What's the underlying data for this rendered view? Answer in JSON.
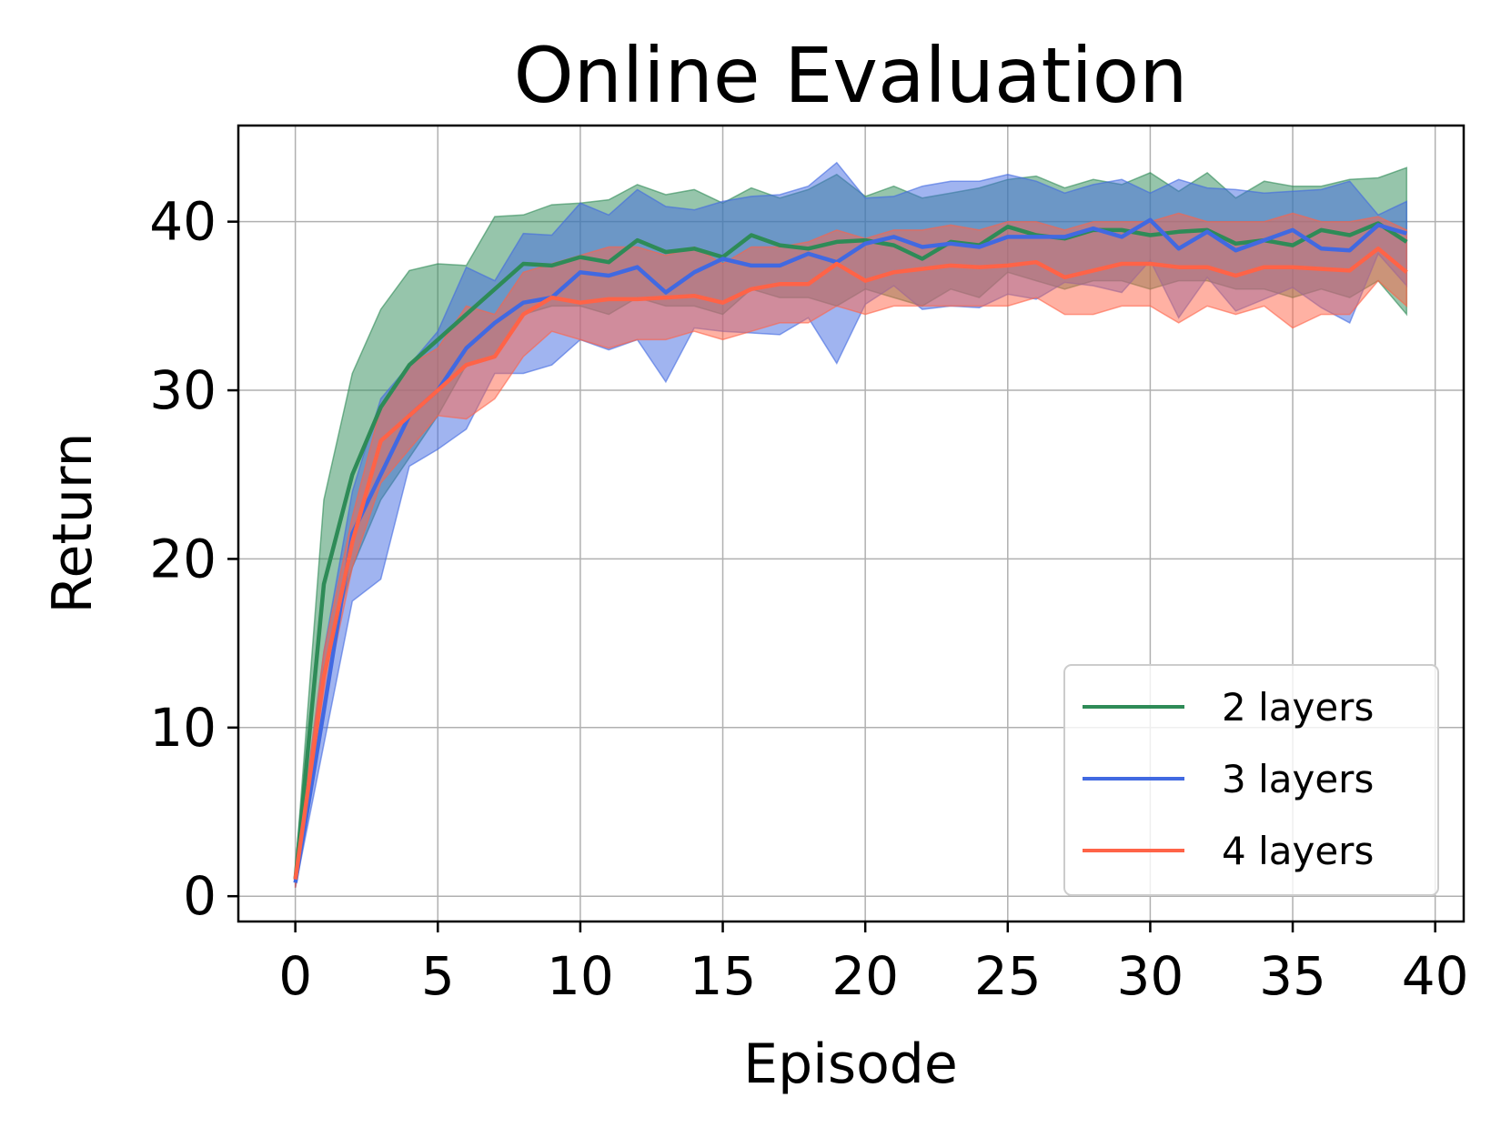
{
  "chart_data": {
    "type": "line",
    "title": "Online Evaluation",
    "xlabel": "Episode",
    "ylabel": "Return",
    "xlim": [
      -2,
      41
    ],
    "ylim": [
      -1.5,
      45.7
    ],
    "x_ticks": [
      0,
      5,
      10,
      15,
      20,
      25,
      30,
      35,
      40
    ],
    "y_ticks": [
      0,
      10,
      20,
      30,
      40
    ],
    "x_tick_labels": [
      "0",
      "5",
      "10",
      "15",
      "20",
      "25",
      "30",
      "35",
      "40"
    ],
    "y_tick_labels": [
      "0",
      "10",
      "20",
      "30",
      "40"
    ],
    "grid": true,
    "legend_position": "lower-right",
    "x": [
      0,
      1,
      2,
      3,
      4,
      5,
      6,
      7,
      8,
      9,
      10,
      11,
      12,
      13,
      14,
      15,
      16,
      17,
      18,
      19,
      20,
      21,
      22,
      23,
      24,
      25,
      26,
      27,
      28,
      29,
      30,
      31,
      32,
      33,
      34,
      35,
      36,
      37,
      38,
      39
    ],
    "series": [
      {
        "name": "2 layers",
        "color": "#2e8b57",
        "band_color": "#2e8b57",
        "values": [
          1.0,
          18.5,
          25.0,
          29.0,
          31.5,
          33.0,
          34.5,
          36.0,
          37.5,
          37.4,
          37.9,
          37.6,
          38.9,
          38.2,
          38.4,
          37.9,
          39.2,
          38.6,
          38.4,
          38.8,
          38.9,
          38.6,
          37.8,
          38.8,
          38.6,
          39.7,
          39.2,
          39.0,
          39.5,
          39.5,
          39.2,
          39.4,
          39.5,
          38.7,
          38.9,
          38.6,
          39.5,
          39.2,
          39.9,
          38.8
        ],
        "upper": [
          1.5,
          23.5,
          31.0,
          34.8,
          37.1,
          37.5,
          37.4,
          40.3,
          40.4,
          41.0,
          41.1,
          41.3,
          42.2,
          41.6,
          41.9,
          41.1,
          42.0,
          41.4,
          41.9,
          42.8,
          41.5,
          42.1,
          41.4,
          41.7,
          42.0,
          42.5,
          42.7,
          42.0,
          42.5,
          42.2,
          42.9,
          41.8,
          42.9,
          41.4,
          42.4,
          42.1,
          42.1,
          42.5,
          42.6,
          43.2
        ],
        "lower": [
          0.5,
          13.5,
          19.5,
          23.5,
          26.0,
          28.5,
          31.5,
          32.0,
          34.5,
          35.0,
          35.0,
          34.5,
          35.5,
          35.0,
          35.0,
          34.5,
          36.0,
          35.5,
          35.5,
          35.0,
          36.0,
          35.5,
          35.0,
          36.0,
          35.5,
          37.0,
          36.5,
          36.0,
          36.5,
          36.5,
          36.0,
          36.5,
          36.5,
          36.0,
          36.0,
          35.5,
          36.0,
          35.5,
          36.5,
          34.5
        ]
      },
      {
        "name": "3 layers",
        "color": "#4169e1",
        "band_color": "#4169e1",
        "values": [
          0.8,
          11.0,
          21.5,
          25.0,
          28.5,
          30.0,
          32.5,
          34.0,
          35.2,
          35.5,
          37.0,
          36.8,
          37.3,
          35.8,
          37.0,
          37.8,
          37.4,
          37.4,
          38.1,
          37.6,
          38.7,
          39.1,
          38.5,
          38.7,
          38.5,
          39.1,
          39.1,
          39.1,
          39.6,
          39.1,
          40.1,
          38.4,
          39.4,
          38.3,
          38.9,
          39.5,
          38.4,
          38.3,
          39.8,
          39.3
        ],
        "upper": [
          1.2,
          14.5,
          24.0,
          29.5,
          31.5,
          33.5,
          37.3,
          36.5,
          39.3,
          39.2,
          41.1,
          40.4,
          41.9,
          40.9,
          40.7,
          41.2,
          41.5,
          41.6,
          42.1,
          43.5,
          41.4,
          41.5,
          42.1,
          42.4,
          42.4,
          42.8,
          42.4,
          41.7,
          42.2,
          42.5,
          41.7,
          42.5,
          42.0,
          41.9,
          41.7,
          41.8,
          41.9,
          42.4,
          40.4,
          41.2
        ],
        "lower": [
          0.5,
          9.0,
          17.5,
          18.8,
          25.5,
          26.5,
          27.7,
          31.0,
          31.0,
          31.5,
          33.0,
          32.4,
          33.0,
          30.5,
          33.7,
          33.5,
          33.4,
          33.3,
          34.3,
          31.6,
          35.1,
          36.2,
          34.8,
          35.0,
          34.9,
          35.7,
          35.4,
          36.4,
          36.2,
          35.8,
          37.7,
          34.3,
          36.7,
          34.7,
          35.4,
          36.1,
          34.9,
          34.0,
          38.1,
          36.2
        ]
      },
      {
        "name": "4 layers",
        "color": "#ff6347",
        "band_color": "#ff6347",
        "values": [
          1.0,
          13.0,
          21.0,
          27.0,
          28.5,
          30.0,
          31.5,
          32.0,
          34.5,
          35.5,
          35.2,
          35.4,
          35.4,
          35.5,
          35.6,
          35.2,
          36.0,
          36.3,
          36.3,
          37.5,
          36.5,
          37.0,
          37.2,
          37.4,
          37.3,
          37.4,
          37.6,
          36.7,
          37.1,
          37.5,
          37.5,
          37.3,
          37.3,
          36.8,
          37.3,
          37.3,
          37.2,
          37.1,
          38.4,
          37.0
        ],
        "upper": [
          1.5,
          14.5,
          22.5,
          29.0,
          31.5,
          32.5,
          35.0,
          34.5,
          37.0,
          37.5,
          38.0,
          38.5,
          38.5,
          38.0,
          38.5,
          37.5,
          38.5,
          38.5,
          38.8,
          39.5,
          39.0,
          39.5,
          39.5,
          39.8,
          39.5,
          40.0,
          40.0,
          39.5,
          40.0,
          40.0,
          40.0,
          40.5,
          40.0,
          40.0,
          40.0,
          40.5,
          40.0,
          40.0,
          40.3,
          39.5
        ],
        "lower": [
          0.5,
          11.5,
          19.5,
          24.5,
          26.5,
          28.5,
          28.3,
          29.5,
          32.0,
          33.5,
          33.0,
          32.5,
          33.0,
          33.0,
          33.5,
          33.0,
          33.5,
          34.0,
          34.0,
          35.0,
          34.5,
          35.0,
          35.0,
          35.0,
          35.0,
          35.0,
          35.5,
          34.5,
          34.5,
          35.0,
          35.0,
          34.0,
          35.0,
          34.5,
          35.0,
          33.7,
          34.5,
          34.5,
          36.5,
          35.0
        ]
      }
    ]
  }
}
